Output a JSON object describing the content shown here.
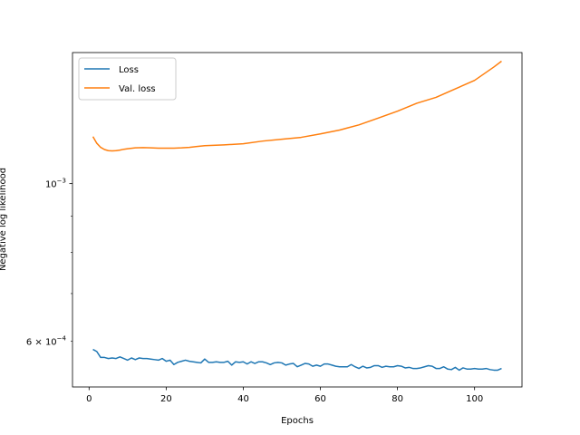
{
  "chart_data": {
    "type": "line",
    "title": "",
    "xlabel": "Epochs",
    "ylabel": "Negative log likelihood",
    "yscale": "log",
    "xlim": [
      -4.3,
      112.3
    ],
    "ylim": [
      0.000517,
      0.00153
    ],
    "x_ticks": [
      {
        "value": 0,
        "label": "0"
      },
      {
        "value": 20,
        "label": "20"
      },
      {
        "value": 40,
        "label": "40"
      },
      {
        "value": 60,
        "label": "60"
      },
      {
        "value": 80,
        "label": "80"
      },
      {
        "value": 100,
        "label": "100"
      }
    ],
    "y_major_ticks": [
      {
        "value": 0.001,
        "base": "10",
        "exponent": "−3",
        "mantissa": ""
      }
    ],
    "y_minor_ticks": [
      {
        "value": 0.0006,
        "base": "10",
        "exponent": "−4",
        "mantissa": "6 × "
      },
      {
        "value": 0.0007,
        "label": ""
      },
      {
        "value": 0.0008,
        "label": ""
      },
      {
        "value": 0.0009,
        "label": ""
      }
    ],
    "grid": false,
    "legend_position": "upper-left",
    "series": [
      {
        "name": "Loss",
        "color": "#1f77b4",
        "x": [
          1,
          2,
          3,
          4,
          5,
          6,
          7,
          8,
          9,
          10,
          11,
          12,
          13,
          14,
          15,
          16,
          17,
          18,
          19,
          20,
          21,
          22,
          23,
          24,
          25,
          26,
          27,
          28,
          29,
          30,
          31,
          32,
          33,
          34,
          35,
          36,
          37,
          38,
          39,
          40,
          41,
          42,
          43,
          44,
          45,
          46,
          47,
          48,
          49,
          50,
          51,
          52,
          53,
          54,
          55,
          56,
          57,
          58,
          59,
          60,
          61,
          62,
          63,
          64,
          65,
          66,
          67,
          68,
          69,
          70,
          71,
          72,
          73,
          74,
          75,
          76,
          77,
          78,
          79,
          80,
          81,
          82,
          83,
          84,
          85,
          86,
          87,
          88,
          89,
          90,
          91,
          92,
          93,
          94,
          95,
          96,
          97,
          98,
          99,
          100,
          101,
          102,
          103,
          104,
          105,
          106,
          107
        ],
        "values": [
          0.000584,
          0.00058,
          0.000569,
          0.000569,
          0.000567,
          0.000568,
          0.000567,
          0.00057,
          0.000567,
          0.000564,
          0.000568,
          0.000565,
          0.000568,
          0.000567,
          0.000567,
          0.000566,
          0.000565,
          0.000564,
          0.000567,
          0.000562,
          0.000564,
          0.000556,
          0.00056,
          0.000562,
          0.000564,
          0.000562,
          0.000561,
          0.00056,
          0.000559,
          0.000566,
          0.00056,
          0.00056,
          0.000561,
          0.00056,
          0.00056,
          0.000562,
          0.000555,
          0.000561,
          0.00056,
          0.000561,
          0.000557,
          0.000561,
          0.000558,
          0.000561,
          0.000561,
          0.000559,
          0.000556,
          0.000559,
          0.00056,
          0.000559,
          0.000555,
          0.000557,
          0.000558,
          0.000552,
          0.000555,
          0.000558,
          0.000557,
          0.000553,
          0.000555,
          0.000553,
          0.000557,
          0.000557,
          0.000555,
          0.000553,
          0.000552,
          0.000552,
          0.000552,
          0.000556,
          0.000552,
          0.000549,
          0.000553,
          0.00055,
          0.000551,
          0.000554,
          0.000554,
          0.000551,
          0.000553,
          0.000552,
          0.000552,
          0.000554,
          0.000553,
          0.00055,
          0.000551,
          0.000549,
          0.000549,
          0.00055,
          0.000552,
          0.000554,
          0.000553,
          0.000549,
          0.000549,
          0.000552,
          0.000548,
          0.000547,
          0.000551,
          0.000546,
          0.00055,
          0.000548,
          0.000548,
          0.000549,
          0.000548,
          0.000548,
          0.000549,
          0.000547,
          0.000546,
          0.000546,
          0.000549
        ]
      },
      {
        "name": "Val. loss",
        "color": "#ff7f0e",
        "x": [
          1,
          2,
          3,
          4,
          5,
          6,
          7,
          8,
          9,
          10,
          12,
          14,
          16,
          18,
          20,
          22,
          24,
          26,
          28,
          30,
          35,
          40,
          45,
          50,
          55,
          60,
          65,
          70,
          75,
          80,
          85,
          90,
          95,
          100,
          105,
          107
        ],
        "values": [
          0.001165,
          0.00114,
          0.001125,
          0.001117,
          0.001113,
          0.001112,
          0.001113,
          0.001115,
          0.001118,
          0.00112,
          0.001123,
          0.001124,
          0.001123,
          0.001122,
          0.001122,
          0.001122,
          0.001123,
          0.001125,
          0.001128,
          0.001131,
          0.001134,
          0.001138,
          0.001148,
          0.001155,
          0.001162,
          0.001175,
          0.00119,
          0.00121,
          0.001237,
          0.001265,
          0.001298,
          0.001323,
          0.00136,
          0.001398,
          0.00146,
          0.001488
        ]
      }
    ]
  }
}
